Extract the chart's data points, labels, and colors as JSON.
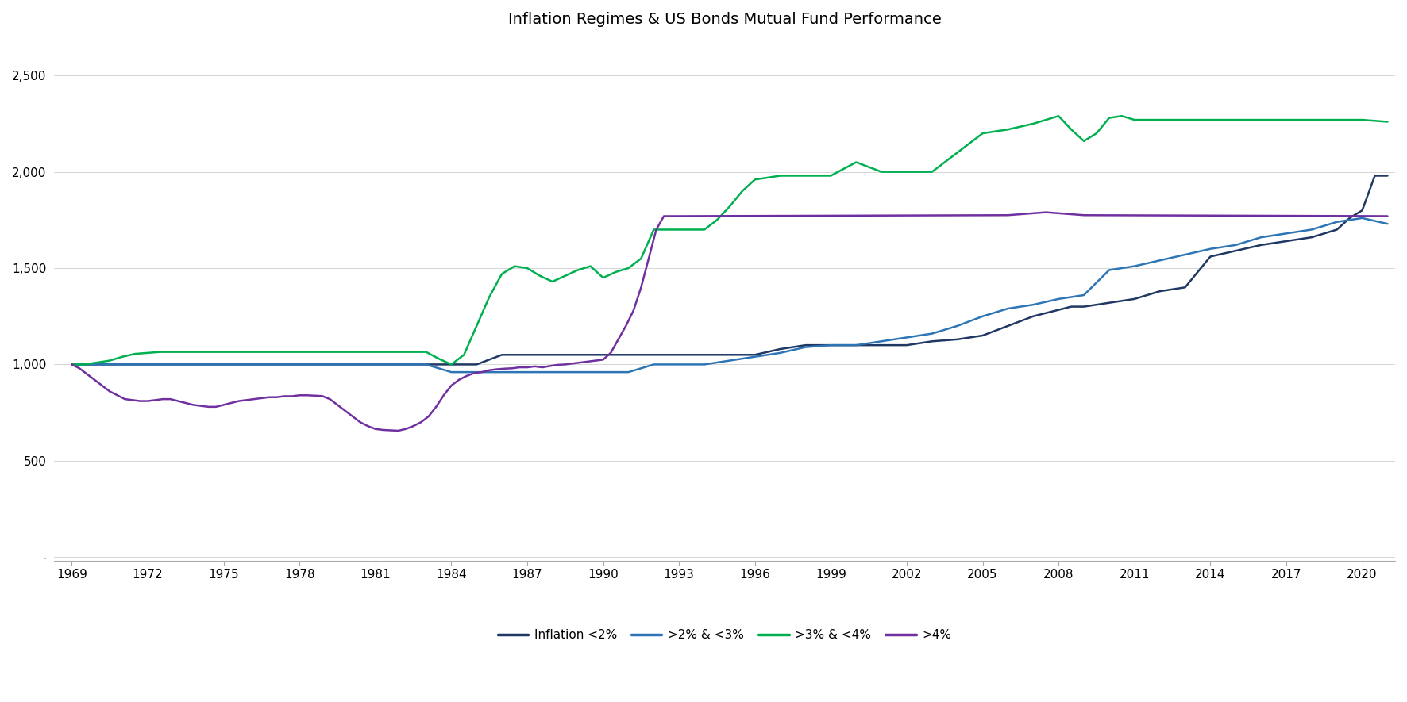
{
  "title": "Inflation Regimes & US Bonds Mutual Fund Performance",
  "title_fontsize": 14,
  "background_color": "#ffffff",
  "colors": {
    "inflation_lt2": "#1f3864",
    "inflation_2to3": "#2e75b6",
    "inflation_3to4": "#00b050",
    "inflation_gt4": "#7030a0"
  },
  "legend_labels": [
    "Inflation <2%",
    ">2% & <3%",
    ">3% & <4%",
    ">4%"
  ],
  "x_ticks": [
    1969,
    1972,
    1975,
    1978,
    1981,
    1984,
    1987,
    1990,
    1993,
    1996,
    1999,
    2002,
    2005,
    2008,
    2011,
    2014,
    2017,
    2020
  ],
  "y_ticks": [
    0,
    500,
    1000,
    1500,
    2000,
    2500
  ],
  "y_tick_labels": [
    "-",
    "500",
    "1,000",
    "1,500",
    "2,000",
    "2,500"
  ],
  "ylim": [
    -20,
    2700
  ],
  "xlim": [
    1968.3,
    2021.3
  ],
  "linewidth": 1.8,
  "series": {
    "inflation_lt2": {
      "x": [
        1969.0,
        1971.5,
        1972.0,
        1973.0,
        1974.0,
        1975.0,
        1976.0,
        1977.0,
        1978.0,
        1979.0,
        1980.0,
        1981.0,
        1982.0,
        1983.0,
        1984.0,
        1985.0,
        1986.0,
        1987.0,
        1988.0,
        1989.0,
        1990.0,
        1991.0,
        1992.0,
        1993.0,
        1994.0,
        1995.0,
        1996.0,
        1997.0,
        1998.0,
        1999.0,
        2000.0,
        2001.0,
        2002.0,
        2003.0,
        2004.0,
        2005.0,
        2006.0,
        2007.0,
        2008.5,
        2009.0,
        2010.0,
        2011.0,
        2012.0,
        2013.0,
        2014.0,
        2015.0,
        2016.0,
        2017.0,
        2018.0,
        2019.0,
        2019.5,
        2020.0,
        2020.5,
        2021.0
      ],
      "y": [
        1000,
        1000,
        1000,
        1000,
        1000,
        1000,
        1000,
        1000,
        1000,
        1000,
        1000,
        1000,
        1000,
        1000,
        1000,
        1000,
        1050,
        1050,
        1050,
        1050,
        1050,
        1050,
        1050,
        1050,
        1050,
        1050,
        1050,
        1080,
        1100,
        1100,
        1100,
        1100,
        1100,
        1120,
        1130,
        1150,
        1200,
        1250,
        1300,
        1300,
        1320,
        1340,
        1380,
        1400,
        1560,
        1590,
        1620,
        1640,
        1660,
        1700,
        1760,
        1800,
        1980,
        1980
      ]
    },
    "inflation_2to3": {
      "x": [
        1969.0,
        1970.0,
        1971.0,
        1972.0,
        1973.0,
        1974.0,
        1975.0,
        1976.0,
        1977.0,
        1978.0,
        1979.0,
        1980.0,
        1981.0,
        1982.0,
        1983.0,
        1983.5,
        1984.0,
        1984.5,
        1985.0,
        1986.0,
        1987.0,
        1988.0,
        1989.0,
        1990.0,
        1991.0,
        1991.5,
        1992.0,
        1993.0,
        1994.0,
        1995.0,
        1996.0,
        1997.0,
        1998.0,
        1999.0,
        2000.0,
        2001.0,
        2002.0,
        2003.0,
        2004.0,
        2005.0,
        2006.0,
        2007.0,
        2008.0,
        2009.0,
        2010.0,
        2011.0,
        2012.0,
        2013.0,
        2014.0,
        2015.0,
        2016.0,
        2017.0,
        2018.0,
        2019.0,
        2020.0,
        2021.0
      ],
      "y": [
        1000,
        1000,
        1000,
        1000,
        1000,
        1000,
        1000,
        1000,
        1000,
        1000,
        1000,
        1000,
        1000,
        1000,
        1000,
        980,
        960,
        960,
        960,
        960,
        960,
        960,
        960,
        960,
        960,
        980,
        1000,
        1000,
        1000,
        1020,
        1040,
        1060,
        1090,
        1100,
        1100,
        1120,
        1140,
        1160,
        1200,
        1250,
        1290,
        1310,
        1340,
        1360,
        1490,
        1510,
        1540,
        1570,
        1600,
        1620,
        1660,
        1680,
        1700,
        1740,
        1760,
        1730
      ]
    },
    "inflation_3to4": {
      "x": [
        1969.0,
        1969.5,
        1970.0,
        1970.5,
        1971.0,
        1971.5,
        1972.0,
        1972.5,
        1973.0,
        1974.0,
        1975.0,
        1976.0,
        1977.0,
        1978.0,
        1979.0,
        1980.0,
        1981.0,
        1982.0,
        1983.0,
        1983.5,
        1984.0,
        1984.5,
        1985.0,
        1985.5,
        1986.0,
        1986.5,
        1987.0,
        1987.5,
        1988.0,
        1988.5,
        1989.0,
        1989.5,
        1990.0,
        1990.5,
        1991.0,
        1991.5,
        1992.0,
        1993.0,
        1994.0,
        1994.5,
        1995.0,
        1995.5,
        1996.0,
        1997.0,
        1998.0,
        1999.0,
        2000.0,
        2001.0,
        2002.0,
        2003.0,
        2004.0,
        2005.0,
        2006.0,
        2007.0,
        2008.0,
        2008.5,
        2009.0,
        2009.5,
        2010.0,
        2010.5,
        2011.0,
        2012.0,
        2013.0,
        2014.0,
        2015.0,
        2016.0,
        2017.0,
        2018.0,
        2019.0,
        2020.0,
        2021.0
      ],
      "y": [
        1000,
        1000,
        1010,
        1020,
        1040,
        1055,
        1060,
        1065,
        1065,
        1065,
        1065,
        1065,
        1065,
        1065,
        1065,
        1065,
        1065,
        1065,
        1065,
        1030,
        1000,
        1050,
        1200,
        1350,
        1470,
        1510,
        1500,
        1460,
        1430,
        1460,
        1490,
        1510,
        1450,
        1480,
        1500,
        1550,
        1700,
        1700,
        1700,
        1750,
        1820,
        1900,
        1960,
        1980,
        1980,
        1980,
        2050,
        2000,
        2000,
        2000,
        2100,
        2200,
        2220,
        2250,
        2290,
        2220,
        2160,
        2200,
        2280,
        2290,
        2270,
        2270,
        2270,
        2270,
        2270,
        2270,
        2270,
        2270,
        2270,
        2270,
        2260
      ]
    },
    "inflation_gt4": {
      "x": [
        1969.0,
        1969.3,
        1969.6,
        1969.9,
        1970.2,
        1970.5,
        1970.8,
        1971.1,
        1971.4,
        1971.7,
        1972.0,
        1972.3,
        1972.6,
        1972.9,
        1973.2,
        1973.5,
        1973.8,
        1974.1,
        1974.4,
        1974.7,
        1975.0,
        1975.3,
        1975.6,
        1975.9,
        1976.2,
        1976.5,
        1976.8,
        1977.1,
        1977.4,
        1977.7,
        1978.0,
        1978.3,
        1978.6,
        1978.9,
        1979.2,
        1979.5,
        1979.8,
        1980.1,
        1980.4,
        1980.7,
        1981.0,
        1981.3,
        1981.6,
        1981.9,
        1982.2,
        1982.5,
        1982.8,
        1983.1,
        1983.4,
        1983.7,
        1984.0,
        1984.3,
        1984.6,
        1984.9,
        1985.2,
        1985.5,
        1985.8,
        1986.1,
        1986.4,
        1986.7,
        1987.0,
        1987.3,
        1987.6,
        1987.9,
        1988.2,
        1988.5,
        1988.8,
        1989.1,
        1989.4,
        1989.7,
        1990.0,
        1990.3,
        1990.6,
        1990.9,
        1991.2,
        1991.5,
        1991.8,
        1992.1,
        1992.4,
        1992.7,
        1992.9,
        2006.0,
        2006.5,
        2007.0,
        2007.5,
        2008.0,
        2008.5,
        2009.0,
        2021.0
      ],
      "y": [
        1000,
        980,
        950,
        920,
        890,
        860,
        840,
        820,
        815,
        810,
        810,
        815,
        820,
        820,
        810,
        800,
        790,
        785,
        780,
        780,
        790,
        800,
        810,
        815,
        820,
        825,
        830,
        830,
        835,
        835,
        840,
        840,
        838,
        836,
        820,
        790,
        760,
        730,
        700,
        680,
        665,
        660,
        658,
        656,
        665,
        680,
        700,
        730,
        780,
        840,
        890,
        920,
        940,
        955,
        960,
        970,
        975,
        978,
        980,
        985,
        985,
        990,
        985,
        992,
        998,
        1000,
        1005,
        1010,
        1015,
        1020,
        1025,
        1060,
        1130,
        1200,
        1280,
        1400,
        1550,
        1700,
        1770,
        1770,
        1770,
        1775,
        1780,
        1785,
        1790,
        1785,
        1780,
        1775,
        1770
      ]
    }
  }
}
